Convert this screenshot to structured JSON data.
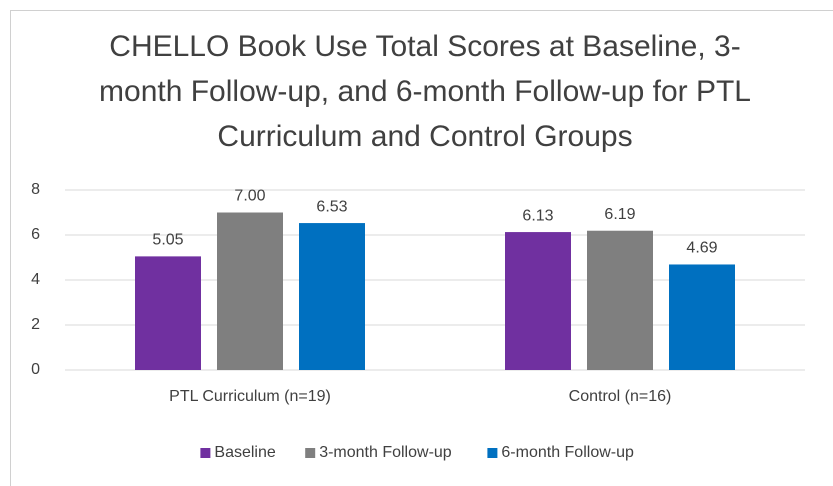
{
  "chart_data": {
    "type": "bar",
    "title": "CHELLO Book Use Total Scores at Baseline, 3-month Follow-up, and 6-month Follow-up for PTL Curriculum and Control Groups",
    "categories": [
      "PTL Curriculum (n=19)",
      "Control (n=16)"
    ],
    "series": [
      {
        "name": "Baseline",
        "color": "#7030a0",
        "values": [
          5.05,
          6.13
        ],
        "value_labels": [
          "5.05",
          "6.13"
        ]
      },
      {
        "name": "3-month Follow-up",
        "color": "#7f7f7f",
        "values": [
          7,
          6.19
        ],
        "value_labels": [
          "7.00",
          "6.19"
        ]
      },
      {
        "name": "6-month Follow-up",
        "color": "#0070c0",
        "values": [
          6.53,
          4.69
        ],
        "value_labels": [
          "6.53",
          "4.69"
        ]
      }
    ],
    "ylim": [
      0,
      8
    ],
    "yticks": [
      0,
      2,
      4,
      6,
      8
    ],
    "grid": true,
    "legend": "bottom"
  }
}
